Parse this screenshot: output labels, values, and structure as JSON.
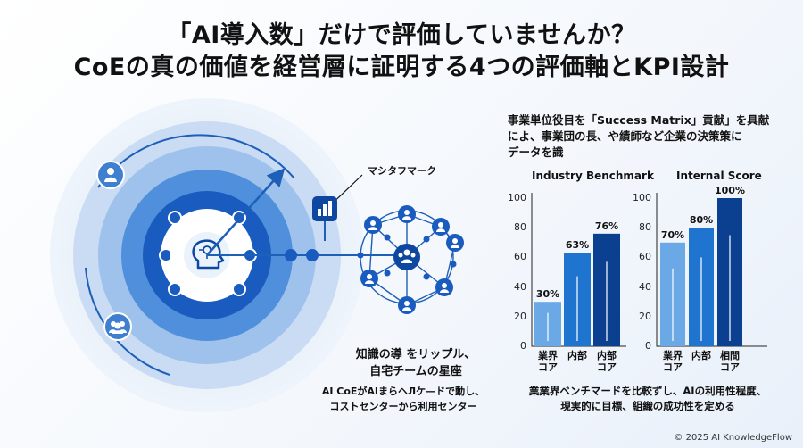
{
  "title": {
    "line1": "「AI導入数」だけで評価していませんか？",
    "line2": "CoEの真の価値を経営層に証明する4つの評価軸とKPI設計"
  },
  "diagram": {
    "callout_label": "マシタフマーク",
    "ripple_title_line1": "知識の導 をリップル、",
    "ripple_title_line2": "自宅チームの星座",
    "ripple_desc_line1": "AI CoEがAIまらヘЛケ—ドで動し、",
    "ripple_desc_line2": "コストセンターから利用センター",
    "icons": [
      "brain-head-icon",
      "person-icon",
      "group-icon",
      "chart-icon",
      "team-icon"
    ],
    "colors": {
      "dark": "#0d47a1",
      "mid": "#1e6fd0",
      "light": "#7fb0e8",
      "pale": "#c9dcf4"
    }
  },
  "right_heading": {
    "line1": "事業単位役目を「Success Matrix」貢献」を具献",
    "line2": "によ、事業団の長、や績師など企業の決策策に",
    "line3": "データを識"
  },
  "chart_data": [
    {
      "type": "bar",
      "title": "Industry Benchmark",
      "ylim": [
        0,
        100
      ],
      "yticks": [
        "0",
        "20",
        "40",
        "60",
        "80",
        "100"
      ],
      "categories": [
        "業界\nコア",
        "内部",
        "内部\nコア"
      ],
      "values": [
        30,
        63,
        76
      ],
      "value_labels": [
        "30%",
        "63%",
        "76%"
      ],
      "colors": [
        "#6aa8e6",
        "#1f74d0",
        "#0b3f8f"
      ]
    },
    {
      "type": "bar",
      "title": "Internal Score",
      "ylim": [
        0,
        100
      ],
      "yticks": [
        "0",
        "20",
        "40",
        "60",
        "80",
        "100"
      ],
      "categories": [
        "業界\nコア",
        "内部",
        "相間\nコア"
      ],
      "values": [
        70,
        80,
        100
      ],
      "value_labels": [
        "70%",
        "80%",
        "100%"
      ],
      "colors": [
        "#6aa8e6",
        "#1f74d0",
        "#0b3f8f"
      ]
    }
  ],
  "bottom_note": {
    "line1": "業業界ベンチマードを比較ずし、AIの利用性程度、",
    "line2": "現実的に目標、組織の成功性を定める"
  },
  "footer": "© 2025 AI KnowledgeFlow"
}
